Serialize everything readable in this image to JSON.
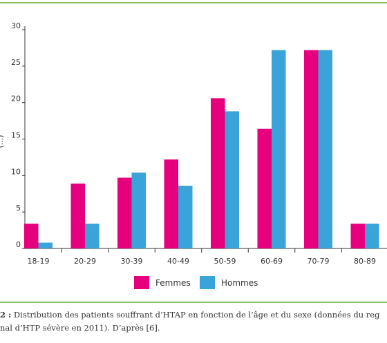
{
  "chart_data": {
    "type": "bar",
    "title": "",
    "xlabel": "",
    "ylabel": "(...)",
    "ylim": [
      0,
      30
    ],
    "yticks": [
      0,
      5,
      10,
      15,
      20,
      25,
      30
    ],
    "grid": false,
    "legend_position": "bottom-center",
    "categories": [
      "18-19",
      "20-29",
      "30-39",
      "40-49",
      "50-59",
      "60-69",
      "70-79",
      "80-89"
    ],
    "series": [
      {
        "name": "Femmes",
        "color": "#e6007e",
        "values": [
          3.4,
          8.9,
          9.7,
          12.2,
          20.6,
          16.4,
          27.2,
          3.4
        ]
      },
      {
        "name": "Hommes",
        "color": "#3aa3d9",
        "values": [
          0.8,
          3.4,
          10.4,
          8.6,
          18.8,
          27.2,
          27.2,
          3.4
        ]
      }
    ]
  },
  "caption": {
    "figure_number": "2 :",
    "line1": " Distribution des patients souffrant d’HTAP en fonction de l’âge et du sexe (données du reg",
    "line2": "nal d’HTP sévère en 2011). D’après [6]."
  },
  "colors": {
    "accent_rule": "#8bbf5a",
    "axis": "#333333"
  }
}
